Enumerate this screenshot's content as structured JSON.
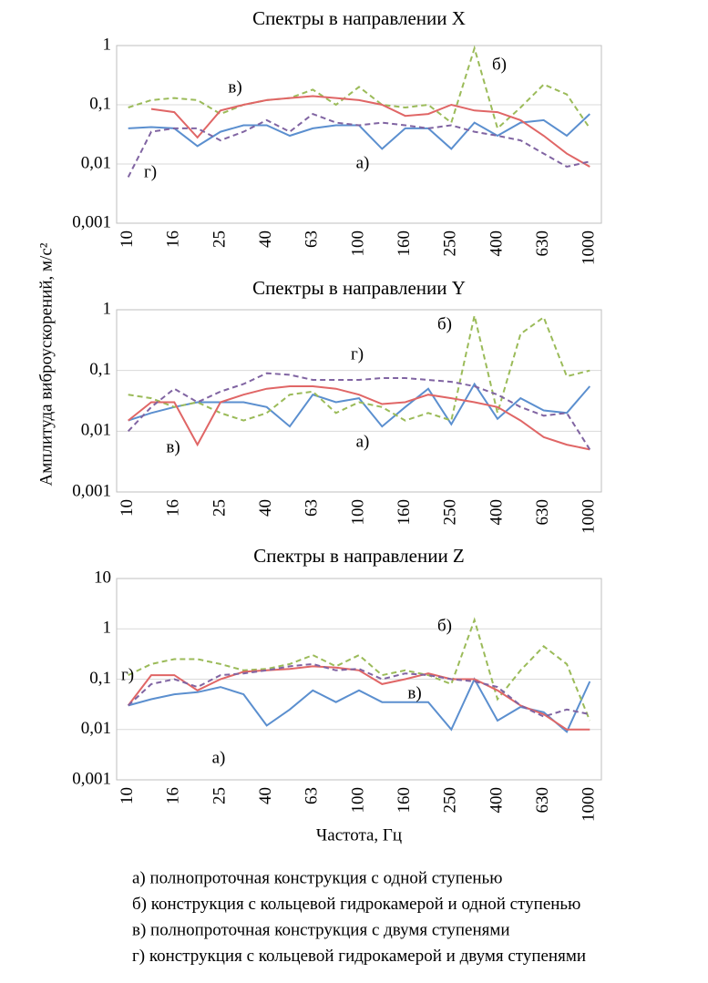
{
  "ylabel": "Амплитуда виброускорений, м/с²",
  "chart_data": [
    {
      "type": "line",
      "title": "Спектры в направлении X",
      "log_scale": true,
      "grid": true,
      "categories": [
        "10",
        null,
        "16",
        null,
        "25",
        null,
        "40",
        null,
        "63",
        null,
        "100",
        null,
        "160",
        null,
        "250",
        null,
        "400",
        null,
        "630",
        null,
        "1000"
      ],
      "ylim": [
        0.001,
        1
      ],
      "yticks": [
        {
          "value": 0.001,
          "label": "0,001"
        },
        {
          "value": 0.01,
          "label": "0,01"
        },
        {
          "value": 0.1,
          "label": "0,1"
        },
        1
      ],
      "annotations": [
        "в)",
        "б)",
        "а)",
        "г)"
      ],
      "series": [
        {
          "name": "а) полнопроточная конструкция с одной ступенью",
          "color": "#5b8fcf",
          "style": "solid",
          "values": [
            0.04,
            0.042,
            0.04,
            0.02,
            0.035,
            0.045,
            0.045,
            0.03,
            0.04,
            0.045,
            0.045,
            0.018,
            0.04,
            0.04,
            0.018,
            0.05,
            0.03,
            0.05,
            0.055,
            0.03,
            0.07
          ]
        },
        {
          "name": "б) конструкция с кольцевой гидрокамерой и одной ступенью",
          "color": "#9bbb59",
          "style": "dashed",
          "values": [
            0.09,
            0.12,
            0.13,
            0.12,
            0.07,
            0.1,
            0.12,
            0.13,
            0.18,
            0.1,
            0.2,
            0.1,
            0.09,
            0.1,
            0.05,
            0.9,
            0.04,
            0.09,
            0.22,
            0.15,
            0.04
          ]
        },
        {
          "name": "в) полнопроточная конструкция с двумя ступенями",
          "color": "#e06666",
          "style": "solid",
          "values": [
            null,
            0.085,
            0.075,
            0.028,
            0.08,
            0.1,
            0.12,
            0.13,
            0.14,
            0.13,
            0.12,
            0.1,
            0.065,
            0.07,
            0.1,
            0.08,
            0.075,
            0.055,
            0.03,
            0.015,
            0.009
          ]
        },
        {
          "name": "г) конструкция с кольцевой гидрокамерой и двумя ступенями",
          "color": "#8064a2",
          "style": "dashed",
          "values": [
            0.006,
            0.035,
            0.04,
            0.04,
            0.025,
            0.035,
            0.055,
            0.035,
            0.07,
            0.05,
            0.045,
            0.05,
            0.045,
            0.04,
            0.045,
            0.035,
            0.03,
            0.025,
            0.015,
            0.009,
            0.011
          ]
        }
      ]
    },
    {
      "type": "line",
      "title": "Спектры в направлении Y",
      "log_scale": true,
      "grid": true,
      "categories": [
        "10",
        null,
        "16",
        null,
        "25",
        null,
        "40",
        null,
        "63",
        null,
        "100",
        null,
        "160",
        null,
        "250",
        null,
        "400",
        null,
        "630",
        null,
        "1000"
      ],
      "ylim": [
        0.001,
        1
      ],
      "yticks": [
        {
          "value": 0.001,
          "label": "0,001"
        },
        {
          "value": 0.01,
          "label": "0,01"
        },
        {
          "value": 0.1,
          "label": "0,1"
        },
        1
      ],
      "annotations": [
        "б)",
        "г)",
        "в)",
        "а)"
      ],
      "series": [
        {
          "color": "#5b8fcf",
          "style": "solid",
          "values": [
            0.015,
            0.02,
            0.025,
            0.03,
            0.03,
            0.03,
            0.025,
            0.012,
            0.04,
            0.03,
            0.035,
            0.012,
            0.025,
            0.05,
            0.013,
            0.06,
            0.016,
            0.035,
            0.022,
            0.02,
            0.055
          ]
        },
        {
          "color": "#9bbb59",
          "style": "dashed",
          "values": [
            0.04,
            0.035,
            0.025,
            0.03,
            0.02,
            0.015,
            0.02,
            0.04,
            0.045,
            0.02,
            0.03,
            0.025,
            0.015,
            0.02,
            0.015,
            0.8,
            0.02,
            0.4,
            0.75,
            0.08,
            0.1
          ]
        },
        {
          "color": "#e06666",
          "style": "solid",
          "values": [
            0.015,
            0.03,
            0.03,
            0.006,
            0.03,
            0.04,
            0.05,
            0.055,
            0.055,
            0.05,
            0.04,
            0.028,
            0.03,
            0.04,
            0.035,
            0.03,
            0.025,
            0.015,
            0.008,
            0.006,
            0.005
          ]
        },
        {
          "color": "#8064a2",
          "style": "dashed",
          "values": [
            0.01,
            0.025,
            0.05,
            0.03,
            0.045,
            0.06,
            0.09,
            0.085,
            0.07,
            0.07,
            0.07,
            0.075,
            0.075,
            0.07,
            0.065,
            0.055,
            0.04,
            0.025,
            0.018,
            0.02,
            0.005
          ]
        }
      ]
    },
    {
      "type": "line",
      "title": "Спектры в направлении Z",
      "log_scale": true,
      "grid": true,
      "xlabel": "Частота, Гц",
      "categories": [
        "10",
        null,
        "16",
        null,
        "25",
        null,
        "40",
        null,
        "63",
        null,
        "100",
        null,
        "160",
        null,
        "250",
        null,
        "400",
        null,
        "630",
        null,
        "1000"
      ],
      "ylim": [
        0.001,
        10
      ],
      "yticks": [
        {
          "value": 0.001,
          "label": "0,001"
        },
        {
          "value": 0.01,
          "label": "0,01"
        },
        {
          "value": 0.1,
          "label": "0,1"
        },
        1,
        10
      ],
      "annotations": [
        "б)",
        "г)",
        "в)",
        "а)"
      ],
      "series": [
        {
          "color": "#5b8fcf",
          "style": "solid",
          "values": [
            0.03,
            0.04,
            0.05,
            0.055,
            0.07,
            0.05,
            0.012,
            0.025,
            0.06,
            0.035,
            0.06,
            0.035,
            0.035,
            0.035,
            0.01,
            0.1,
            0.015,
            0.028,
            0.022,
            0.009,
            0.09
          ]
        },
        {
          "color": "#9bbb59",
          "style": "dashed",
          "values": [
            0.12,
            0.2,
            0.25,
            0.25,
            0.2,
            0.15,
            0.16,
            0.2,
            0.3,
            0.18,
            0.3,
            0.12,
            0.15,
            0.12,
            0.08,
            1.5,
            0.04,
            0.15,
            0.45,
            0.2,
            0.015
          ]
        },
        {
          "color": "#e06666",
          "style": "solid",
          "values": [
            0.03,
            0.12,
            0.12,
            0.06,
            0.1,
            0.14,
            0.15,
            0.16,
            0.18,
            0.17,
            0.15,
            0.08,
            0.1,
            0.13,
            0.1,
            0.1,
            0.06,
            0.03,
            0.02,
            0.01,
            0.01
          ]
        },
        {
          "color": "#8064a2",
          "style": "dashed",
          "values": [
            0.03,
            0.08,
            0.1,
            0.07,
            0.12,
            0.13,
            0.15,
            0.18,
            0.2,
            0.15,
            0.16,
            0.1,
            0.13,
            0.12,
            0.1,
            0.09,
            0.07,
            0.03,
            0.018,
            0.025,
            0.02
          ]
        }
      ]
    }
  ]
}
